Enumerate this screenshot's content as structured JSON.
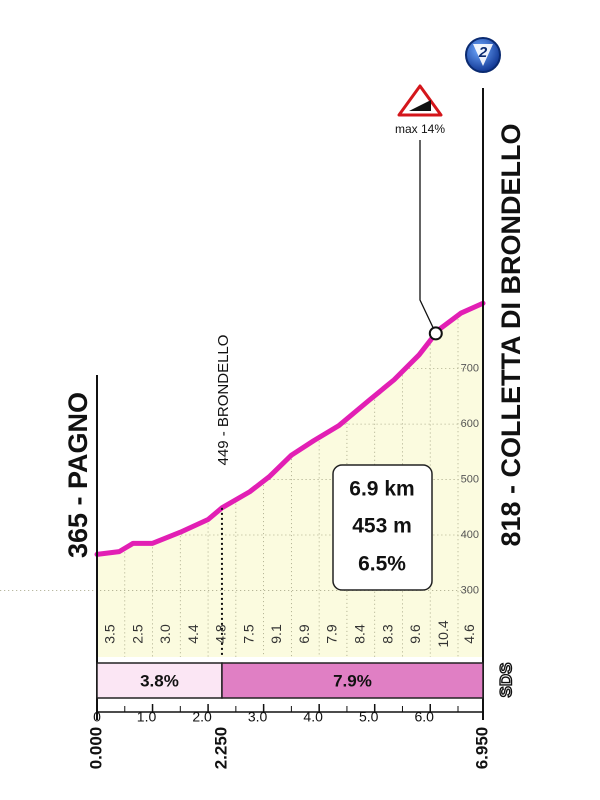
{
  "chart_data": {
    "type": "area",
    "badge": "2",
    "start_label": "365 - PAGNO",
    "end_label": "818 - COLLETTA DI BRONDELLO",
    "waypoint": {
      "label": "449 - BRONDELLO",
      "x": 2.25
    },
    "max_marker": {
      "label": "max 14%",
      "x": 6.1
    },
    "info": {
      "distance": "6.9 km",
      "gain": "453 m",
      "gradient": "6.5%"
    },
    "logo": "SDS",
    "x": [
      0,
      0.4,
      0.65,
      1.0,
      1.5,
      2.0,
      2.25,
      2.75,
      3.1,
      3.5,
      3.9,
      4.35,
      4.9,
      5.35,
      5.8,
      6.15,
      6.55,
      6.95
    ],
    "values": [
      365,
      370,
      385,
      385,
      405,
      428,
      449,
      478,
      505,
      544,
      570,
      597,
      643,
      680,
      725,
      770,
      800,
      818
    ],
    "color": "#e21fb4",
    "fill": "#fbfbdf",
    "xlim": [
      0,
      6.95
    ],
    "ylim": [
      180,
      900
    ],
    "yticks": [
      300,
      400,
      500,
      600,
      700
    ],
    "xticks": [
      0,
      {
        "value": 1,
        "label": "1.0"
      },
      {
        "value": 2,
        "label": "2.0"
      },
      {
        "value": 3,
        "label": "3.0"
      },
      {
        "value": 4,
        "label": "4.0"
      },
      {
        "value": 5,
        "label": "5.0"
      },
      {
        "value": 6,
        "label": "6.0"
      }
    ],
    "key_distances": [
      {
        "value": 0,
        "label": "0.000"
      },
      {
        "value": 2.25,
        "label": "2.250"
      },
      {
        "value": 6.95,
        "label": "6.950"
      }
    ],
    "grid": true,
    "half_km_gradients": {
      "values": [
        3.5,
        2.5,
        3,
        4.4,
        4.8,
        7.5,
        9.1,
        6.9,
        7.9,
        8.4,
        8.3,
        9.6,
        10.4,
        4.6
      ],
      "value_labels": [
        "3.5",
        "2.5",
        "3.0",
        "4.4",
        "4.8",
        "7.5",
        "9.1",
        "6.9",
        "7.9",
        "8.4",
        "8.3",
        "9.6",
        "10.4",
        "4.6"
      ]
    },
    "sections": [
      {
        "start": 0,
        "end": 2.25,
        "value": 3.8,
        "label": "3.8%",
        "color": "#fbe6f4"
      },
      {
        "start": 2.25,
        "end": 6.95,
        "value": 7.9,
        "label": "7.9%",
        "color": "#e07fc4"
      }
    ]
  }
}
